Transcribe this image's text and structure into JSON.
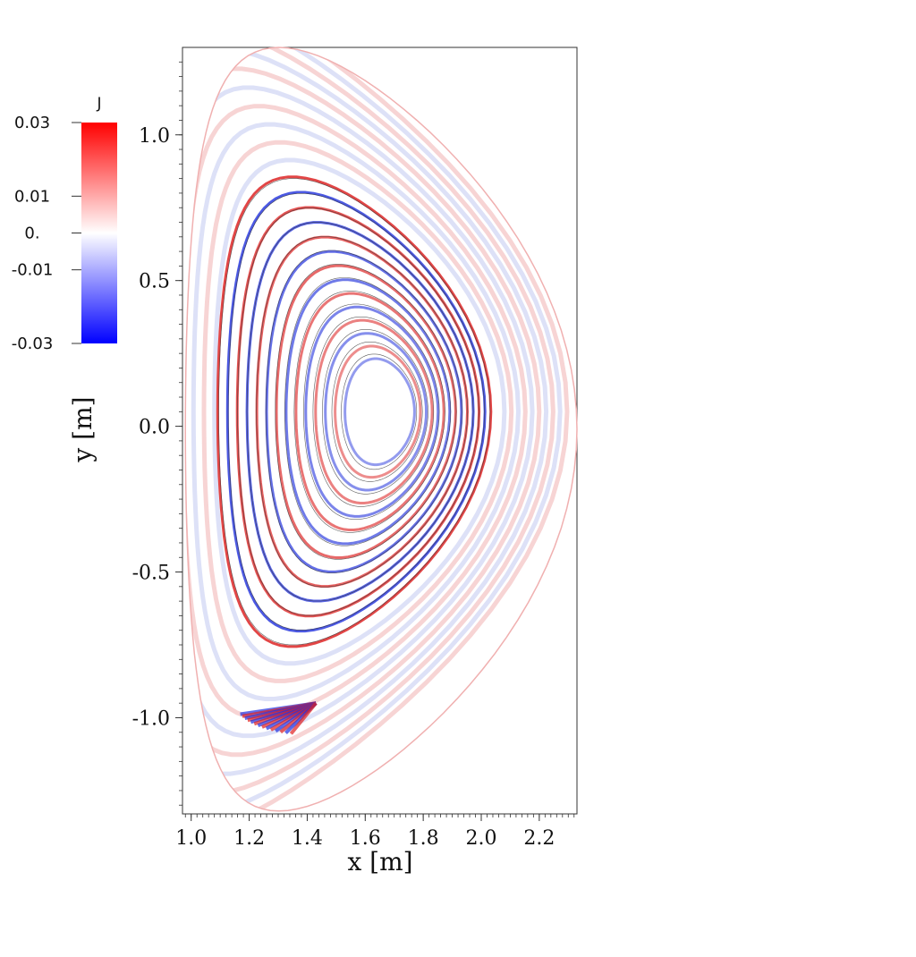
{
  "chart_data": {
    "type": "heatmap",
    "title": "",
    "xlabel": "x [m]",
    "ylabel": "y [m]",
    "xlim": [
      0.97,
      2.33
    ],
    "ylim": [
      -1.33,
      1.3
    ],
    "x_ticks": [
      1.0,
      1.2,
      1.4,
      1.6,
      1.8,
      2.0,
      2.2
    ],
    "x_tick_labels": [
      "1.0",
      "1.2",
      "1.4",
      "1.6",
      "1.8",
      "2.0",
      "2.2"
    ],
    "y_ticks": [
      1.0,
      0.5,
      0.0,
      -0.5,
      -1.0
    ],
    "y_tick_labels": [
      "1.0",
      "0.5",
      "0.0",
      "-0.5",
      "-1.0"
    ],
    "colorbar": {
      "title": "J",
      "range": [
        -0.03,
        0.03
      ],
      "ticks": [
        0.03,
        0.01,
        0.0,
        -0.01,
        -0.03
      ],
      "tick_labels": [
        "0.03",
        "0.01",
        "0.",
        "-0.01",
        "-0.03"
      ],
      "colormap": [
        "#0000ff",
        "#ffffff",
        "#ff0000"
      ]
    },
    "domain": {
      "description_shape": "D-shaped vessel",
      "x_inner": 0.98,
      "x_outer": 2.33,
      "y_top": 1.3,
      "y_bottom": -1.32
    },
    "flux_surfaces": {
      "center": [
        1.68,
        0.05
      ],
      "count": 14,
      "separatrix_x_point": [
        1.43,
        -0.95
      ]
    },
    "grid": false,
    "legend": "colorbar-left"
  }
}
